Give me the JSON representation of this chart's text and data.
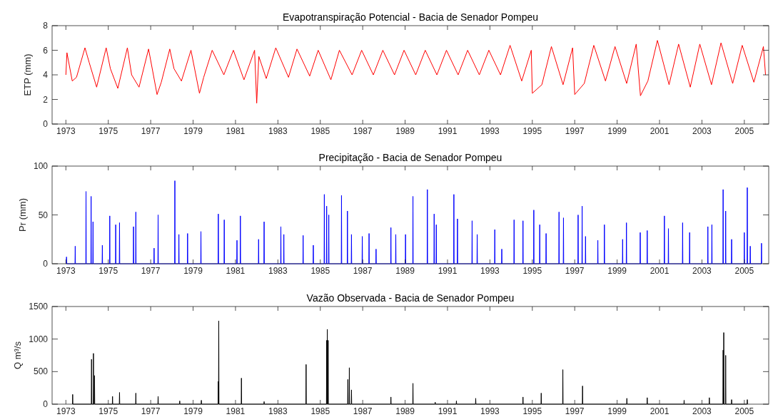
{
  "chart_data": [
    {
      "type": "line",
      "title": "Evapotranspiração Potencial - Bacia de Senador Pompeu",
      "ylabel": "ETP (mm)",
      "xlim": [
        1972.35,
        2006.15
      ],
      "xticks": [
        1973,
        1975,
        1977,
        1979,
        1981,
        1983,
        1985,
        1987,
        1989,
        1991,
        1993,
        1995,
        1997,
        1999,
        2001,
        2003,
        2005
      ],
      "ylim": [
        0,
        8
      ],
      "yticks": [
        0,
        2,
        4,
        6,
        8
      ],
      "series": [
        {
          "color": "#ff0000",
          "x": [
            1973.0,
            1973.05,
            1973.3,
            1973.5,
            1973.9,
            1974.1,
            1974.45,
            1974.9,
            1975.1,
            1975.45,
            1975.9,
            1976.1,
            1976.45,
            1976.9,
            1977.3,
            1977.5,
            1977.9,
            1978.1,
            1978.45,
            1978.9,
            1979.3,
            1979.5,
            1979.9,
            1980.45,
            1980.9,
            1981.4,
            1981.9,
            1982.0,
            1982.1,
            1982.45,
            1982.9,
            1983.5,
            1983.9,
            1984.5,
            1984.9,
            1985.5,
            1985.9,
            1986.5,
            1986.95,
            1987.5,
            1987.95,
            1988.5,
            1988.95,
            1989.5,
            1989.95,
            1990.5,
            1990.95,
            1991.5,
            1991.95,
            1992.5,
            1992.95,
            1993.5,
            1993.95,
            1994.5,
            1994.95,
            1995.0,
            1995.45,
            1995.9,
            1996.45,
            1996.9,
            1997.0,
            1997.45,
            1997.9,
            1998.45,
            1998.9,
            1999.45,
            1999.9,
            2000.1,
            2000.45,
            2000.9,
            2001.45,
            2001.9,
            2002.45,
            2002.9,
            2003.45,
            2003.9,
            2004.45,
            2004.9,
            2005.45,
            2005.9,
            2006.0
          ],
          "values": [
            4.0,
            5.8,
            3.5,
            3.8,
            6.2,
            5.0,
            3.0,
            6.2,
            4.5,
            2.9,
            6.2,
            4.0,
            3.0,
            6.1,
            2.4,
            3.4,
            6.1,
            4.5,
            3.5,
            6.0,
            2.5,
            3.8,
            6.0,
            4.0,
            6.0,
            3.6,
            6.0,
            1.7,
            5.5,
            3.7,
            6.2,
            3.8,
            6.1,
            3.9,
            6.0,
            3.6,
            6.0,
            4.0,
            6.0,
            4.0,
            6.0,
            4.0,
            6.0,
            4.0,
            6.0,
            4.0,
            6.0,
            4.0,
            6.0,
            4.0,
            6.0,
            4.0,
            6.4,
            3.5,
            6.0,
            2.5,
            3.2,
            6.3,
            3.2,
            6.2,
            2.4,
            3.3,
            6.4,
            3.5,
            6.3,
            3.3,
            6.5,
            2.3,
            3.5,
            6.8,
            3.2,
            6.5,
            3.0,
            6.5,
            3.2,
            6.6,
            3.3,
            6.4,
            3.4,
            6.3,
            4.0
          ]
        }
      ]
    },
    {
      "type": "line",
      "title": "Precipitação - Bacia de Senador Pompeu",
      "ylabel": "Pr (mm)",
      "xlim": [
        1972.35,
        2006.15
      ],
      "xticks": [
        1973,
        1975,
        1977,
        1979,
        1981,
        1983,
        1985,
        1987,
        1989,
        1991,
        1993,
        1995,
        1997,
        1999,
        2001,
        2003,
        2005
      ],
      "ylim": [
        0,
        100
      ],
      "yticks": [
        0,
        50,
        100
      ],
      "series": [
        {
          "color": "#0000ff",
          "x": [
            1973.02,
            1973.03,
            1973.04,
            1973.43,
            1973.44,
            1973.45,
            1973.94,
            1973.95,
            1973.96,
            1974.18,
            1974.19,
            1974.2,
            1974.27,
            1974.28,
            1974.29,
            1974.71,
            1974.72,
            1974.73,
            1975.06,
            1975.07,
            1975.08,
            1975.34,
            1975.35,
            1975.36,
            1975.52,
            1975.53,
            1975.54,
            1976.18,
            1976.19,
            1976.2,
            1976.29,
            1976.3,
            1976.31,
            1977.15,
            1977.16,
            1977.17,
            1977.34,
            1977.35,
            1977.36,
            1978.13,
            1978.14,
            1978.15,
            1978.32,
            1978.33,
            1978.34,
            1978.73,
            1978.74,
            1978.75,
            1979.36,
            1979.37,
            1979.38,
            1980.18,
            1980.19,
            1980.2,
            1980.46,
            1980.47,
            1980.48,
            1981.06,
            1981.07,
            1981.08,
            1981.22,
            1981.23,
            1981.24,
            1982.08,
            1982.09,
            1982.1,
            1982.34,
            1982.35,
            1982.36,
            1983.13,
            1983.14,
            1983.15,
            1983.27,
            1983.28,
            1983.29,
            1984.18,
            1984.19,
            1984.2,
            1984.66,
            1984.67,
            1984.68,
            1985.18,
            1985.19,
            1985.2,
            1985.29,
            1985.3,
            1985.31,
            1985.39,
            1985.4,
            1985.41,
            1985.99,
            1986.0,
            1986.01,
            1986.27,
            1986.28,
            1986.29,
            1986.46,
            1986.47,
            1986.48,
            1986.97,
            1986.98,
            1986.99,
            1987.29,
            1987.3,
            1987.31,
            1987.62,
            1987.63,
            1987.64,
            1988.32,
            1988.33,
            1988.34,
            1988.55,
            1988.56,
            1988.57,
            1989.01,
            1989.02,
            1989.03,
            1989.36,
            1989.37,
            1989.38,
            1990.04,
            1990.05,
            1990.06,
            1990.36,
            1990.37,
            1990.38,
            1990.46,
            1990.47,
            1990.48,
            1991.29,
            1991.3,
            1991.31,
            1991.46,
            1991.47,
            1991.48,
            1992.15,
            1992.16,
            1992.17,
            1992.39,
            1992.4,
            1992.41,
            1993.22,
            1993.23,
            1993.24,
            1993.55,
            1993.56,
            1993.57,
            1994.13,
            1994.14,
            1994.15,
            1994.55,
            1994.56,
            1994.57,
            1995.06,
            1995.07,
            1995.08,
            1995.34,
            1995.35,
            1995.36,
            1995.64,
            1995.65,
            1995.66,
            1996.25,
            1996.26,
            1996.27,
            1996.46,
            1996.47,
            1996.48,
            1997.15,
            1997.16,
            1997.17,
            1997.34,
            1997.35,
            1997.36,
            1997.5,
            1997.51,
            1997.52,
            1998.08,
            1998.09,
            1998.1,
            1998.39,
            1998.4,
            1998.41,
            1999.25,
            1999.26,
            1999.27,
            1999.43,
            1999.44,
            1999.45,
            2000.08,
            2000.09,
            2000.1,
            2000.41,
            2000.42,
            2000.43,
            2001.22,
            2001.23,
            2001.24,
            2001.41,
            2001.42,
            2001.43,
            2002.08,
            2002.09,
            2002.1,
            2002.41,
            2002.42,
            2002.43,
            2003.27,
            2003.28,
            2003.29,
            2003.46,
            2003.47,
            2003.48,
            2003.99,
            2004.0,
            2004.01,
            2004.11,
            2004.12,
            2004.13,
            2004.39,
            2004.4,
            2004.41,
            2004.99,
            2005.0,
            2005.01,
            2005.13,
            2005.14,
            2005.15,
            2005.27,
            2005.28,
            2005.29,
            2005.8,
            2005.81,
            2005.82
          ],
          "values": [
            0,
            7,
            0,
            0,
            18,
            0,
            0,
            74,
            0,
            0,
            69,
            0,
            0,
            43,
            0,
            0,
            19,
            0,
            0,
            49,
            0,
            0,
            40,
            0,
            0,
            42,
            0,
            0,
            38,
            0,
            0,
            53,
            0,
            0,
            16,
            0,
            0,
            50,
            0,
            0,
            85,
            0,
            0,
            30,
            0,
            0,
            31,
            0,
            0,
            33,
            0,
            0,
            51,
            0,
            0,
            45,
            0,
            0,
            24,
            0,
            0,
            49,
            0,
            0,
            25,
            0,
            0,
            43,
            0,
            0,
            38,
            0,
            0,
            30,
            0,
            0,
            29,
            0,
            0,
            19,
            0,
            0,
            71,
            0,
            0,
            59,
            0,
            0,
            50,
            0,
            0,
            70,
            0,
            0,
            54,
            0,
            0,
            30,
            0,
            0,
            28,
            0,
            0,
            31,
            0,
            0,
            15,
            0,
            0,
            37,
            0,
            0,
            30,
            0,
            0,
            30,
            0,
            0,
            69,
            0,
            0,
            76,
            0,
            0,
            51,
            0,
            0,
            40,
            0,
            0,
            71,
            0,
            0,
            46,
            0,
            0,
            44,
            0,
            0,
            30,
            0,
            0,
            35,
            0,
            0,
            15,
            0,
            0,
            45,
            0,
            0,
            44,
            0,
            0,
            55,
            0,
            0,
            40,
            0,
            0,
            31,
            0,
            0,
            53,
            0,
            0,
            47,
            0,
            0,
            50,
            0,
            0,
            59,
            0,
            0,
            28,
            0,
            0,
            24,
            0,
            0,
            40,
            0,
            0,
            25,
            0,
            0,
            42,
            0,
            0,
            32,
            0,
            0,
            34,
            0,
            0,
            49,
            0,
            0,
            36,
            0,
            0,
            42,
            0,
            0,
            32,
            0,
            0,
            38,
            0,
            0,
            40,
            0,
            0,
            76,
            0,
            0,
            54,
            0,
            0,
            25,
            0,
            0,
            32,
            0,
            0,
            78,
            0,
            0,
            18,
            0,
            0,
            21,
            0
          ]
        }
      ]
    },
    {
      "type": "line",
      "title": "Vazão Observada - Bacia de Senador Pompeu",
      "ylabel": "Q m³/s",
      "xlim": [
        1972.35,
        2006.15
      ],
      "xticks": [
        1973,
        1975,
        1977,
        1979,
        1981,
        1983,
        1985,
        1987,
        1989,
        1991,
        1993,
        1995,
        1997,
        1999,
        2001,
        2003,
        2005
      ],
      "ylim": [
        0,
        1500
      ],
      "yticks": [
        0,
        500,
        1000,
        1500
      ],
      "series": [
        {
          "color": "#000000",
          "x": [
            1973.31,
            1973.32,
            1973.33,
            1974.2,
            1974.21,
            1974.22,
            1974.29,
            1974.3,
            1974.31,
            1974.34,
            1974.35,
            1974.36,
            1975.19,
            1975.2,
            1975.21,
            1975.52,
            1975.53,
            1975.54,
            1976.29,
            1976.3,
            1976.31,
            1977.34,
            1977.35,
            1977.36,
            1978.36,
            1978.37,
            1978.38,
            1979.38,
            1979.39,
            1979.4,
            1980.18,
            1980.19,
            1980.2,
            1980.21,
            1980.22,
            1981.27,
            1981.28,
            1981.29,
            1982.34,
            1982.35,
            1982.36,
            1984.32,
            1984.33,
            1984.34,
            1985.29,
            1985.3,
            1985.31,
            1985.32,
            1985.33,
            1985.34,
            1985.36,
            1985.37,
            1985.38,
            1986.29,
            1986.3,
            1986.31,
            1986.36,
            1986.37,
            1986.38,
            1986.46,
            1986.47,
            1986.48,
            1988.32,
            1988.33,
            1988.34,
            1989.36,
            1989.37,
            1989.38,
            1990.41,
            1990.42,
            1990.43,
            1991.41,
            1991.42,
            1991.43,
            1992.32,
            1992.33,
            1992.34,
            1994.55,
            1994.56,
            1994.57,
            1995.41,
            1995.42,
            1995.43,
            1996.43,
            1996.44,
            1996.45,
            1997.36,
            1997.37,
            1997.38,
            1999.45,
            1999.46,
            1999.47,
            2000.41,
            2000.42,
            2000.43,
            2002.15,
            2002.16,
            2002.17,
            2003.34,
            2003.35,
            2003.36,
            2003.99,
            2004.0,
            2004.01,
            2004.02,
            2004.03,
            2004.04,
            2004.11,
            2004.12,
            2004.13,
            2004.39,
            2004.4,
            2004.41,
            2005.13,
            2005.14,
            2005.15
          ],
          "values": [
            0,
            150,
            0,
            0,
            690,
            0,
            0,
            780,
            0,
            0,
            440,
            0,
            0,
            120,
            0,
            0,
            180,
            0,
            0,
            170,
            0,
            0,
            120,
            0,
            0,
            50,
            0,
            0,
            60,
            0,
            0,
            350,
            0,
            1280,
            0,
            0,
            400,
            0,
            0,
            40,
            0,
            0,
            610,
            0,
            0,
            980,
            0,
            0,
            1150,
            0,
            0,
            980,
            0,
            0,
            380,
            0,
            0,
            560,
            0,
            0,
            220,
            0,
            0,
            110,
            0,
            0,
            320,
            0,
            0,
            30,
            0,
            0,
            50,
            0,
            0,
            90,
            0,
            0,
            110,
            0,
            0,
            170,
            0,
            0,
            530,
            0,
            0,
            280,
            0,
            0,
            90,
            0,
            0,
            100,
            0,
            0,
            60,
            0,
            0,
            100,
            0,
            0,
            830,
            0,
            0,
            1100,
            0,
            0,
            750,
            0,
            0,
            70,
            0,
            0,
            70,
            0
          ]
        }
      ]
    }
  ]
}
